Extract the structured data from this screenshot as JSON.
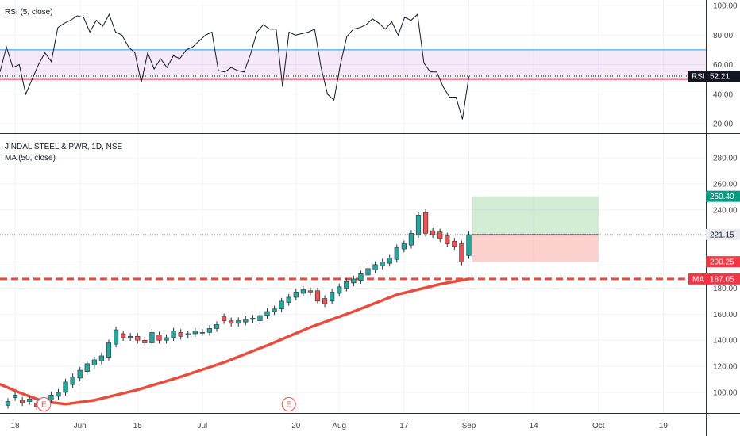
{
  "chart_data": [
    {
      "type": "line",
      "title": "RSI (5, close)",
      "ylim": [
        10,
        100
      ],
      "yticks": [
        20,
        40,
        60,
        80,
        100
      ],
      "overbought": 70,
      "oversold": 50,
      "last_label": "RSI",
      "last_value": 52.21,
      "last_value_text": "52.21",
      "values": [
        55,
        72,
        58,
        60,
        40,
        50,
        60,
        68,
        62,
        85,
        88,
        90,
        93,
        92,
        82,
        90,
        86,
        94,
        82,
        80,
        72,
        68,
        48,
        68,
        57,
        64,
        58,
        66,
        64,
        70,
        72,
        76,
        80,
        82,
        56,
        55,
        58,
        56,
        55,
        67,
        82,
        87,
        84,
        84,
        45,
        82,
        80,
        81,
        82,
        84,
        58,
        40,
        36,
        60,
        79,
        84,
        85,
        87,
        91,
        88,
        84,
        89,
        80,
        92,
        90,
        94,
        61,
        55,
        55,
        45,
        38,
        38,
        23,
        52
      ]
    },
    {
      "type": "candlestick",
      "title": "JINDAL STEEL & PWR, 1D, NSE",
      "indicator_label": "MA (50, close)",
      "ylim": [
        85,
        300
      ],
      "yticks": [
        100,
        120,
        140,
        160,
        180,
        200,
        220,
        240,
        260,
        280
      ],
      "x_tick_labels": [
        "18",
        "Jun",
        "15",
        "Jul",
        "20",
        "Aug",
        "17",
        "Sep",
        "14",
        "Oct",
        "19"
      ],
      "x_tick_index": [
        1,
        10,
        18,
        27,
        40,
        46,
        55,
        64,
        73,
        82,
        91
      ],
      "candles": [
        {
          "o": 90,
          "c": 93
        },
        {
          "o": 96,
          "c": 98
        },
        {
          "o": 94,
          "c": 92
        },
        {
          "o": 93,
          "c": 95
        },
        {
          "o": 92,
          "c": 89
        },
        {
          "o": 91,
          "c": 94
        },
        {
          "o": 94,
          "c": 98
        },
        {
          "o": 97,
          "c": 100
        },
        {
          "o": 100,
          "c": 108
        },
        {
          "o": 106,
          "c": 112
        },
        {
          "o": 111,
          "c": 117
        },
        {
          "o": 116,
          "c": 122
        },
        {
          "o": 121,
          "c": 125
        },
        {
          "o": 124,
          "c": 128
        },
        {
          "o": 127,
          "c": 138
        },
        {
          "o": 137,
          "c": 148
        },
        {
          "o": 145,
          "c": 142
        },
        {
          "o": 142,
          "c": 143
        },
        {
          "o": 143,
          "c": 140
        },
        {
          "o": 140,
          "c": 138
        },
        {
          "o": 138,
          "c": 146
        },
        {
          "o": 144,
          "c": 140
        },
        {
          "o": 140,
          "c": 142
        },
        {
          "o": 142,
          "c": 147
        },
        {
          "o": 146,
          "c": 143
        },
        {
          "o": 144,
          "c": 145
        },
        {
          "o": 145,
          "c": 147
        },
        {
          "o": 146,
          "c": 146
        },
        {
          "o": 146,
          "c": 149
        },
        {
          "o": 149,
          "c": 152
        },
        {
          "o": 158,
          "c": 155
        },
        {
          "o": 155,
          "c": 153
        },
        {
          "o": 153,
          "c": 155
        },
        {
          "o": 154,
          "c": 156
        },
        {
          "o": 156,
          "c": 157
        },
        {
          "o": 155,
          "c": 159
        },
        {
          "o": 159,
          "c": 162
        },
        {
          "o": 162,
          "c": 164
        },
        {
          "o": 164,
          "c": 170
        },
        {
          "o": 169,
          "c": 173
        },
        {
          "o": 173,
          "c": 177
        },
        {
          "o": 176,
          "c": 179
        },
        {
          "o": 178,
          "c": 177
        },
        {
          "o": 178,
          "c": 170
        },
        {
          "o": 172,
          "c": 168
        },
        {
          "o": 170,
          "c": 177
        },
        {
          "o": 176,
          "c": 181
        },
        {
          "o": 180,
          "c": 185
        },
        {
          "o": 184,
          "c": 187
        },
        {
          "o": 186,
          "c": 191
        },
        {
          "o": 190,
          "c": 195
        },
        {
          "o": 194,
          "c": 198
        },
        {
          "o": 197,
          "c": 200
        },
        {
          "o": 199,
          "c": 203
        },
        {
          "o": 202,
          "c": 211
        },
        {
          "o": 210,
          "c": 214
        },
        {
          "o": 213,
          "c": 222
        },
        {
          "o": 221,
          "c": 236
        },
        {
          "o": 238,
          "c": 222
        },
        {
          "o": 224,
          "c": 221
        },
        {
          "o": 223,
          "c": 218
        },
        {
          "o": 220,
          "c": 214
        },
        {
          "o": 216,
          "c": 212
        },
        {
          "o": 214,
          "c": 200
        },
        {
          "o": 205,
          "c": 221
        }
      ],
      "ma": [
        {
          "i": -1,
          "v": 106
        },
        {
          "i": 2,
          "v": 99
        },
        {
          "i": 5,
          "v": 93
        },
        {
          "i": 8,
          "v": 91
        },
        {
          "i": 12,
          "v": 94
        },
        {
          "i": 18,
          "v": 102
        },
        {
          "i": 24,
          "v": 112
        },
        {
          "i": 30,
          "v": 123
        },
        {
          "i": 36,
          "v": 136
        },
        {
          "i": 42,
          "v": 150
        },
        {
          "i": 48,
          "v": 162
        },
        {
          "i": 54,
          "v": 175
        },
        {
          "i": 60,
          "v": 183
        },
        {
          "i": 64,
          "v": 187.05
        }
      ],
      "earnings_markers": [
        {
          "i": 5,
          "label": "E"
        },
        {
          "i": 39,
          "label": "E"
        }
      ],
      "ma_level": 187.05,
      "last_price": 221.15,
      "target_price": 250.4,
      "stop_price": 200.25,
      "position_span": [
        64.5,
        82
      ],
      "price_labels": {
        "ma_tag": "MA",
        "ma_value": "187.05",
        "target": "250.40",
        "current": "221.15",
        "stop": "200.25"
      },
      "colors": {
        "up": "#26a69a",
        "down": "#ef5350",
        "ma": "#e74c3c",
        "rsi_line": "#131722",
        "rsi_band": "#9c27b0",
        "ob_line": "#2196f3",
        "os_line": "#f23645",
        "target_fill": "#4caf50",
        "stop_fill": "#f44336"
      }
    }
  ]
}
